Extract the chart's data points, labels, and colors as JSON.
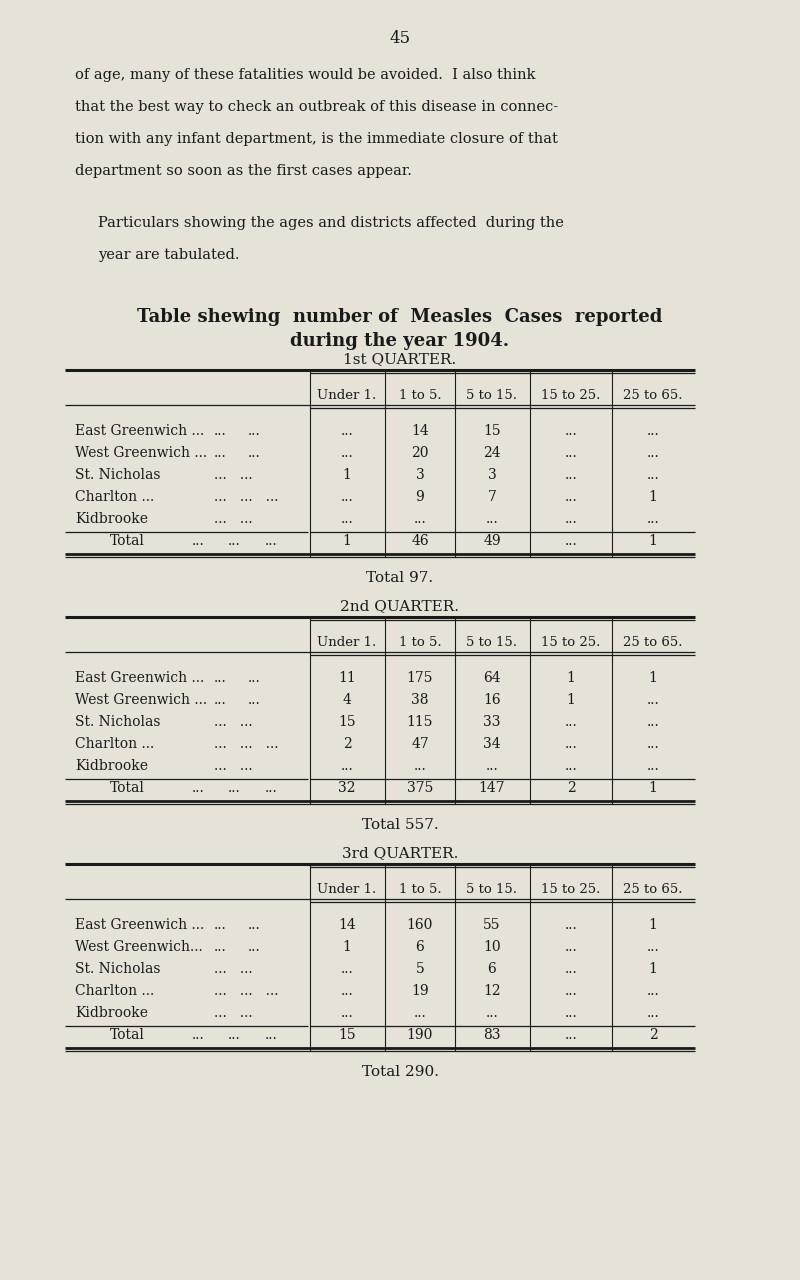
{
  "page_number": "45",
  "bg_color": "#e6e2d8",
  "text_color": "#1a1a1a",
  "intro_text": [
    "of age, many of these fatalities would be avoided.  I also think",
    "that the best way to check an outbreak of this disease in connec-",
    "tion with any infant department, is the immediate closure of that",
    "department so soon as the first cases appear."
  ],
  "particulars_text": [
    "Particulars showing the ages and districts affected  during the",
    "year are tabulated."
  ],
  "table_title_line1": "Table shewing  number of  Measles  Cases  reported",
  "table_title_line2": "during the year 1904.",
  "quarters": [
    {
      "label": "1st QUARTER.",
      "col_headers": [
        "Under 1.",
        "1 to 5.",
        "5 to 15.",
        "15 to 25.",
        "25 to 65."
      ],
      "rows": [
        {
          "district": "East Greenwich ...",
          "dots": "...",
          "values": [
            "...",
            "14",
            "15",
            "...",
            "..."
          ]
        },
        {
          "district": "West Greenwich ...",
          "dots": "...",
          "values": [
            "...",
            "20",
            "24",
            "...",
            "..."
          ]
        },
        {
          "district": "St. Nicholas",
          "dots2": "...   ...",
          "values": [
            "1",
            "3",
            "3",
            "...",
            "..."
          ]
        },
        {
          "district": "Charlton ...",
          "dots2": "...   ...   ...",
          "values": [
            "...",
            "9",
            "7",
            "...",
            "1"
          ]
        },
        {
          "district": "Kidbrooke",
          "dots2": "...   ...",
          "values": [
            "...",
            "...",
            "...",
            "...",
            "..."
          ]
        }
      ],
      "total_row": [
        "1",
        "46",
        "49",
        "...",
        "1"
      ],
      "grand_total": "Total 97."
    },
    {
      "label": "2nd QUARTER.",
      "col_headers": [
        "Under 1.",
        "1 to 5.",
        "5 to 15.",
        "15 to 25.",
        "25 to 65."
      ],
      "rows": [
        {
          "district": "East Greenwich ...",
          "dots": "...",
          "values": [
            "11",
            "175",
            "64",
            "1",
            "1"
          ]
        },
        {
          "district": "West Greenwich ...",
          "dots": "...",
          "values": [
            "4",
            "38",
            "16",
            "1",
            "..."
          ]
        },
        {
          "district": "St. Nicholas",
          "dots2": "...   ...",
          "values": [
            "15",
            "115",
            "33",
            "...",
            "..."
          ]
        },
        {
          "district": "Charlton ...",
          "dots2": "...   ...   ...",
          "values": [
            "2",
            "47",
            "34",
            "...",
            "..."
          ]
        },
        {
          "district": "Kidbrooke",
          "dots2": "...   ...",
          "values": [
            "...",
            "...",
            "...",
            "...",
            "..."
          ]
        }
      ],
      "total_row": [
        "32",
        "375",
        "147",
        "2",
        "1"
      ],
      "grand_total": "Total 557."
    },
    {
      "label": "3rd QUARTER.",
      "col_headers": [
        "Under 1.",
        "1 to 5.",
        "5 to 15.",
        "15 to 25.",
        "25 to 65."
      ],
      "rows": [
        {
          "district": "East Greenwich ...",
          "dots": "...",
          "values": [
            "14",
            "160",
            "55",
            "...",
            "1"
          ]
        },
        {
          "district": "West Greenwich...",
          "dots": "...",
          "values": [
            "1",
            "6",
            "10",
            "...",
            "..."
          ]
        },
        {
          "district": "St. Nicholas",
          "dots2": "...   ...",
          "values": [
            "...",
            "5",
            "6",
            "...",
            "1"
          ]
        },
        {
          "district": "Charlton ...",
          "dots2": "...   ...   ...",
          "values": [
            "...",
            "19",
            "12",
            "...",
            "..."
          ]
        },
        {
          "district": "Kidbrooke",
          "dots2": "...   ...",
          "values": [
            "...",
            "...",
            "...",
            "...",
            "..."
          ]
        }
      ],
      "total_row": [
        "15",
        "190",
        "83",
        "...",
        "2"
      ],
      "grand_total": "Total 290."
    }
  ]
}
